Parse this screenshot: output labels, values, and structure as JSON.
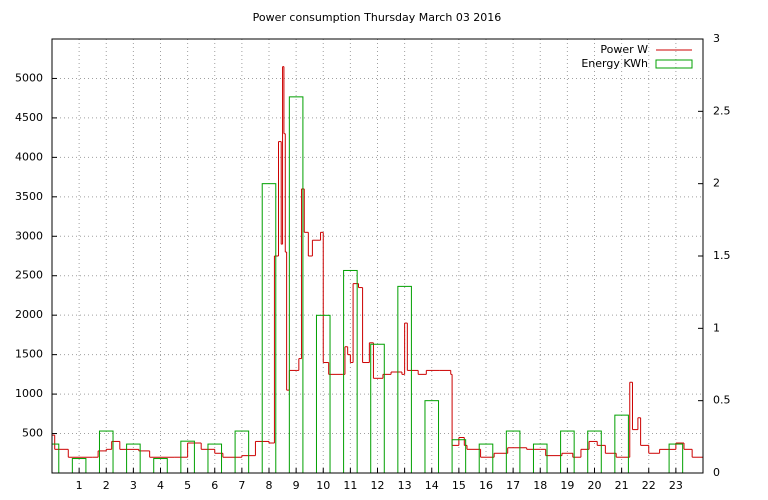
{
  "chart_data": {
    "type": "line",
    "title": "Power consumption Thursday March 03 2016",
    "xlim": [
      0,
      24
    ],
    "xticks": [
      1,
      2,
      3,
      4,
      5,
      6,
      7,
      8,
      9,
      10,
      11,
      12,
      13,
      14,
      15,
      16,
      17,
      18,
      19,
      20,
      21,
      22,
      23
    ],
    "ylim": [
      0,
      5500
    ],
    "yticks": [
      500,
      1000,
      1500,
      2000,
      2500,
      3000,
      3500,
      4000,
      4500,
      5000
    ],
    "y2lim": [
      0,
      3
    ],
    "y2ticks": [
      0,
      0.5,
      1,
      1.5,
      2,
      2.5,
      3
    ],
    "grid": true,
    "legend": "top-right",
    "series": [
      {
        "name": "Power W",
        "type": "line",
        "style": "steps",
        "color": "#cc0000",
        "axis": "y",
        "x": [
          0,
          0.1,
          0.6,
          1.5,
          1.7,
          2.0,
          2.2,
          2.5,
          3.2,
          3.6,
          4.5,
          5.0,
          5.5,
          6.0,
          6.3,
          7.0,
          7.5,
          8.0,
          8.2,
          8.35,
          8.45,
          8.5,
          8.55,
          8.6,
          8.65,
          8.75,
          9.0,
          9.1,
          9.2,
          9.3,
          9.45,
          9.6,
          9.9,
          10.0,
          10.2,
          10.7,
          10.8,
          10.9,
          11.0,
          11.1,
          11.3,
          11.45,
          11.7,
          11.85,
          12.2,
          12.5,
          12.9,
          13.0,
          13.1,
          13.5,
          13.8,
          14.3,
          14.7,
          14.75,
          15.0,
          15.2,
          15.3,
          15.8,
          16.3,
          16.8,
          17.5,
          18.0,
          18.2,
          18.8,
          19.2,
          19.5,
          19.8,
          20.1,
          20.4,
          20.8,
          21.3,
          21.4,
          21.6,
          21.7,
          22.0,
          22.4,
          23.0,
          23.3,
          23.6
        ],
        "values": [
          480,
          300,
          200,
          200,
          280,
          300,
          400,
          300,
          280,
          200,
          200,
          380,
          300,
          250,
          200,
          220,
          400,
          380,
          2750,
          4200,
          2900,
          5150,
          4300,
          2800,
          1050,
          1300,
          1300,
          1450,
          3600,
          3050,
          2750,
          2950,
          3050,
          1400,
          1250,
          1250,
          1600,
          1500,
          1400,
          2400,
          2350,
          1400,
          1650,
          1200,
          1250,
          1280,
          1250,
          1900,
          1300,
          1250,
          1300,
          1300,
          1250,
          350,
          450,
          350,
          300,
          200,
          250,
          320,
          300,
          300,
          220,
          250,
          200,
          300,
          400,
          350,
          250,
          200,
          1150,
          550,
          700,
          350,
          250,
          300,
          380,
          300,
          200
        ]
      },
      {
        "name": "Energy KWh",
        "type": "bar",
        "style": "boxes",
        "color": "#00a000",
        "axis": "y2",
        "x": [
          0,
          1,
          2,
          3,
          4,
          5,
          6,
          7,
          8,
          9,
          10,
          11,
          12,
          13,
          14,
          15,
          16,
          17,
          18,
          19,
          20,
          21,
          23
        ],
        "values": [
          0.2,
          0.1,
          0.29,
          0.2,
          0.1,
          0.22,
          0.2,
          0.29,
          2.0,
          2.6,
          1.09,
          1.4,
          0.89,
          1.29,
          0.5,
          0.23,
          0.2,
          0.29,
          0.2,
          0.29,
          0.29,
          0.4,
          0.2
        ]
      }
    ]
  }
}
